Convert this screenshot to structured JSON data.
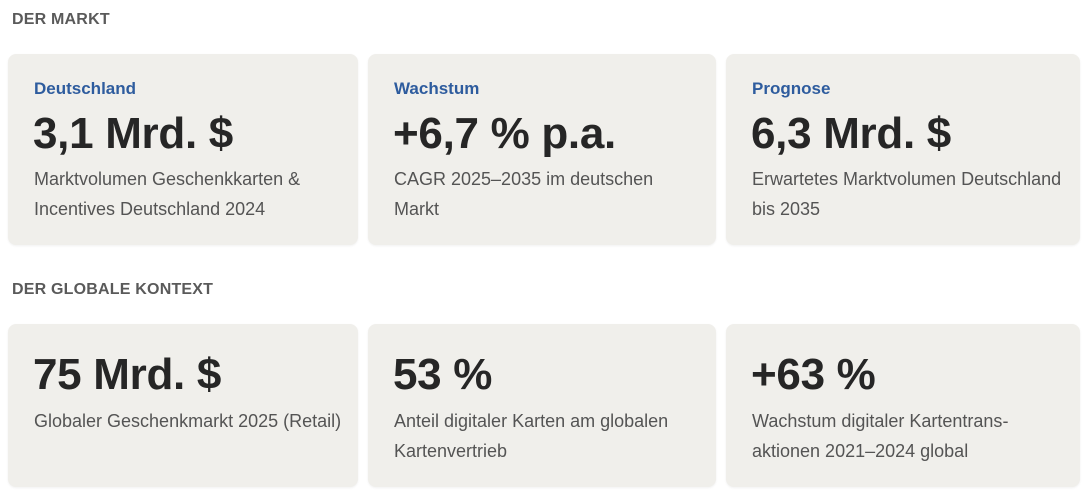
{
  "market": {
    "heading": "DER MARKT",
    "cards": [
      {
        "label": "Deutschland",
        "value": "3,1 Mrd. $",
        "description": "Marktvolumen Geschenkkarten & Incentives Deutschland 2024"
      },
      {
        "label": "Wachstum",
        "value": "+6,7 % p.a.",
        "description": "CAGR 2025–2035 im deutschen Markt"
      },
      {
        "label": "Prognose",
        "value": "6,3 Mrd. $",
        "description": "Erwartetes Marktvolumen Deutschland bis 2035"
      }
    ]
  },
  "global": {
    "heading": "DER GLOBALE KONTEXT",
    "cards": [
      {
        "value": "75 Mrd. $",
        "description": "Globaler Geschenkmarkt 2025 (Retail)"
      },
      {
        "value": "53 %",
        "description": "Anteil digitaler Karten am globalen Kartenvertrieb"
      },
      {
        "value": "+63 %",
        "description": "Wachstum digitaler Kartentrans­aktionen 2021–2024 global"
      }
    ]
  }
}
